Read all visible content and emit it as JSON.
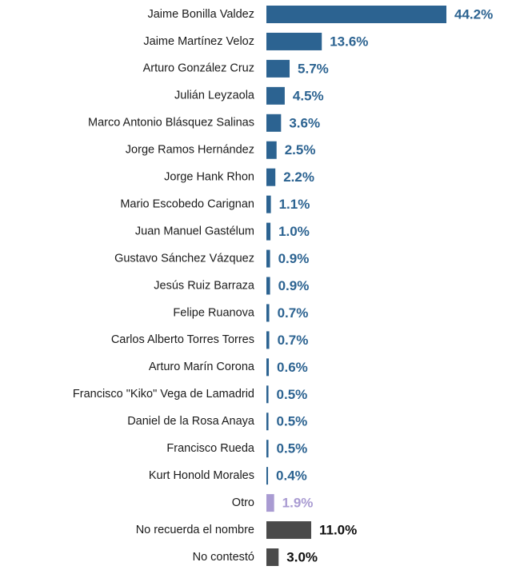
{
  "chart_data": {
    "type": "bar",
    "orientation": "horizontal",
    "categories": [
      "Jaime Bonilla Valdez",
      "Jaime Martínez Veloz",
      "Arturo González Cruz",
      "Julián Leyzaola",
      "Marco Antonio Blásquez Salinas",
      "Jorge Ramos Hernández",
      "Jorge Hank Rhon",
      "Mario Escobedo Carignan",
      "Juan Manuel Gastélum",
      "Gustavo Sánchez Vázquez",
      "Jesús Ruiz Barraza",
      "Felipe Ruanova",
      "Carlos Alberto Torres Torres",
      "Arturo Marín Corona",
      "Francisco \"Kiko\" Vega de Lamadrid",
      "Daniel de la Rosa Anaya",
      "Francisco Rueda",
      "Kurt Honold Morales",
      "Otro",
      "No recuerda el nombre",
      "No contestó"
    ],
    "values": [
      44.2,
      13.6,
      5.7,
      4.5,
      3.6,
      2.5,
      2.2,
      1.1,
      1.0,
      0.9,
      0.9,
      0.7,
      0.7,
      0.6,
      0.5,
      0.5,
      0.5,
      0.4,
      1.9,
      11.0,
      3.0
    ],
    "value_labels": [
      "44.2%",
      "13.6%",
      "5.7%",
      "4.5%",
      "3.6%",
      "2.5%",
      "2.2%",
      "1.1%",
      "1.0%",
      "0.9%",
      "0.9%",
      "0.7%",
      "0.7%",
      "0.6%",
      "0.5%",
      "0.5%",
      "0.5%",
      "0.4%",
      "1.9%",
      "11.0%",
      "3.0%"
    ],
    "colors": [
      "#2c6391",
      "#2c6391",
      "#2c6391",
      "#2c6391",
      "#2c6391",
      "#2c6391",
      "#2c6391",
      "#2c6391",
      "#2c6391",
      "#2c6391",
      "#2c6391",
      "#2c6391",
      "#2c6391",
      "#2c6391",
      "#2c6391",
      "#2c6391",
      "#2c6391",
      "#2c6391",
      "#a99bd2",
      "#4a4a4a",
      "#4a4a4a"
    ],
    "value_label_colors": [
      "#2c6391",
      "#2c6391",
      "#2c6391",
      "#2c6391",
      "#2c6391",
      "#2c6391",
      "#2c6391",
      "#2c6391",
      "#2c6391",
      "#2c6391",
      "#2c6391",
      "#2c6391",
      "#2c6391",
      "#2c6391",
      "#2c6391",
      "#2c6391",
      "#2c6391",
      "#2c6391",
      "#a99bd2",
      "#111111",
      "#111111"
    ]
  }
}
